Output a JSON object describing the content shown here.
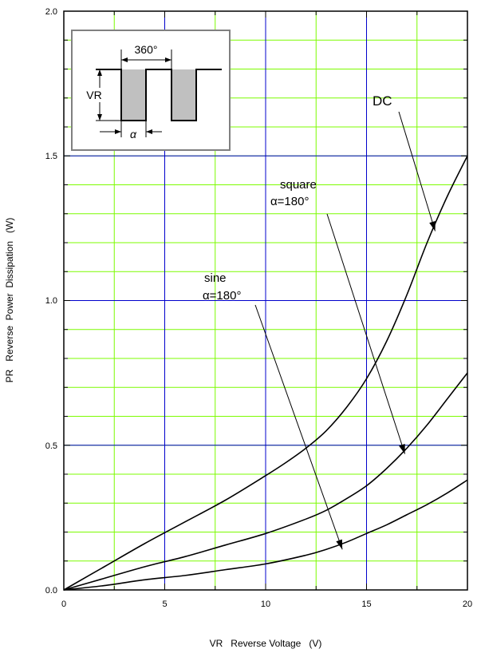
{
  "chart_data": {
    "type": "line",
    "xlabel": "VR   Reverse Voltage   (V)",
    "ylabel": "PR   Reverse  Power  Dissipation   (W)",
    "xlim": [
      0,
      20
    ],
    "ylim": [
      0,
      2.0
    ],
    "x_ticks": [
      "0",
      "5",
      "10",
      "15",
      "20"
    ],
    "y_ticks": [
      "0.0",
      "0.5",
      "1.0",
      "1.5",
      "2.0"
    ],
    "grid": {
      "major_color": "#0000cc",
      "minor_color": "#7cfc00",
      "x_minor_step": 2.5,
      "y_minor_step": 0.1
    },
    "series": [
      {
        "name": "DC",
        "color": "#000000",
        "x": [
          0,
          2,
          4,
          6,
          8,
          10,
          11,
          12,
          13,
          14,
          15,
          16,
          17,
          18,
          19,
          20
        ],
        "y": [
          0,
          0.08,
          0.16,
          0.235,
          0.31,
          0.395,
          0.44,
          0.49,
          0.55,
          0.63,
          0.73,
          0.86,
          1.02,
          1.2,
          1.36,
          1.5
        ]
      },
      {
        "name": "square α=180°",
        "color": "#000000",
        "x": [
          0,
          2,
          4,
          6,
          8,
          10,
          12,
          13,
          14,
          15,
          16,
          17,
          18,
          19,
          20
        ],
        "y": [
          0,
          0.04,
          0.08,
          0.115,
          0.155,
          0.195,
          0.245,
          0.275,
          0.315,
          0.36,
          0.42,
          0.49,
          0.57,
          0.66,
          0.75
        ]
      },
      {
        "name": "sine α=180°",
        "color": "#000000",
        "x": [
          0,
          2,
          4,
          6,
          8,
          10,
          12,
          13,
          14,
          15,
          16,
          17,
          18,
          19,
          20
        ],
        "y": [
          0,
          0.015,
          0.035,
          0.05,
          0.07,
          0.09,
          0.12,
          0.14,
          0.165,
          0.195,
          0.225,
          0.26,
          0.295,
          0.335,
          0.38
        ]
      }
    ],
    "annotations": [
      {
        "text": "DC",
        "target_x": 18.4,
        "target_y": 1.24
      },
      {
        "text": "square",
        "text2": "α=180°",
        "target_x": 16.9,
        "target_y": 0.47
      },
      {
        "text": "sine",
        "text2": "α=180°",
        "target_x": 13.8,
        "target_y": 0.14
      }
    ],
    "inset": {
      "top_label": "360°",
      "left_label": "VR",
      "bottom_label": "α"
    }
  }
}
